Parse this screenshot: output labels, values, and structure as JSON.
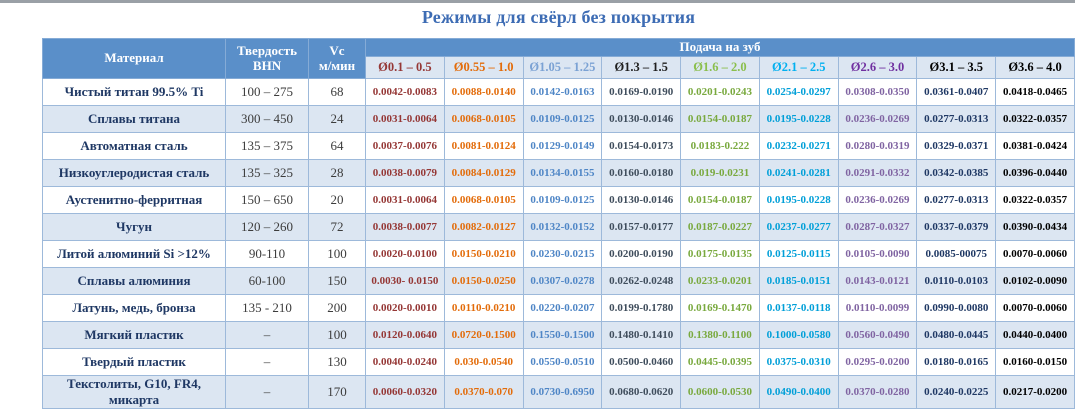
{
  "page": {
    "title": "Режимы для свёрл без покрытия"
  },
  "colors": {
    "header_bg": "#5a8fc9",
    "header_text": "#ffffff",
    "stripe_bg": "#dce6f2",
    "border": "#9db9da",
    "title_text": "#3d6cb4",
    "material_text": "#1f3864"
  },
  "table": {
    "headers": {
      "material": "Материал",
      "hardness_line1": "Твердость",
      "hardness_line2": "BHN",
      "vc_line1": "Vc",
      "vc_line2": "м/мин",
      "feed_group": "Подача на зуб",
      "diameter_columns": [
        "Ø0.1 – 0.5",
        "Ø0.55 – 1.0",
        "Ø1.05 – 1.25",
        "Ø1.3 – 1.5",
        "Ø1.6 – 2.0",
        "Ø2.1 – 2.5",
        "Ø2.6 – 3.0",
        "Ø3.1 – 3.5",
        "Ø3.6 – 4.0"
      ],
      "diameter_header_colors": [
        "#953735",
        "#e36c0a",
        "#7ba2d4",
        "#1f1f1f",
        "#8bbf4d",
        "#00b0f0",
        "#7030a0",
        "#000000",
        "#000000"
      ]
    },
    "feed_cell_colors": [
      "#953735",
      "#e36c0a",
      "#4f86c6",
      "#3f4d5c",
      "#79a93e",
      "#009fd8",
      "#8064a2",
      "#1f3864",
      "#000000"
    ],
    "rows": [
      {
        "material": "Чистый титан 99.5% Ti",
        "bhn": "100 – 275",
        "vc": "68",
        "feeds": [
          "0.0042-0.0083",
          "0.0088-0.0140",
          "0.0142-0.0163",
          "0.0169-0.0190",
          "0.0201-0.0243",
          "0.0254-0.0297",
          "0.0308-0.0350",
          "0.0361-0.0407",
          "0.0418-0.0465"
        ]
      },
      {
        "material": "Сплавы титана",
        "bhn": "300 – 450",
        "vc": "24",
        "feeds": [
          "0.0031-0.0064",
          "0.0068-0.0105",
          "0.0109-0.0125",
          "0.0130-0.0146",
          "0.0154-0.0187",
          "0.0195-0.0228",
          "0.0236-0.0269",
          "0.0277-0.0313",
          "0.0322-0.0357"
        ]
      },
      {
        "material": "Автоматная сталь",
        "bhn": "135 – 375",
        "vc": "64",
        "feeds": [
          "0.0037-0.0076",
          "0.0081-0.0124",
          "0.0129-0.0149",
          "0.0154-0.0173",
          "0.0183-0.222",
          "0.0232-0.0271",
          "0.0280-0.0319",
          "0.0329-0.0371",
          "0.0381-0.0424"
        ]
      },
      {
        "material": "Низкоуглеродистая сталь",
        "bhn": "135 – 325",
        "vc": "28",
        "feeds": [
          "0.0038-0.0079",
          "0.0084-0.0129",
          "0.0134-0.0155",
          "0.0160-0.0180",
          "0.019-0.0231",
          "0.0241-0.0281",
          "0.0291-0.0332",
          "0.0342-0.0385",
          "0.0396-0.0440"
        ]
      },
      {
        "material": "Аустенитно-ферритная",
        "bhn": "150 – 650",
        "vc": "20",
        "feeds": [
          "0.0031-0.0064",
          "0.0068-0.0105",
          "0.0109-0.0125",
          "0.0130-0.0146",
          "0.0154-0.0187",
          "0.0195-0.0228",
          "0.0236-0.0269",
          "0.0277-0.0313",
          "0.0322-0.0357"
        ]
      },
      {
        "material": "Чугун",
        "bhn": "120 – 260",
        "vc": "72",
        "feeds": [
          "0.0038-0.0077",
          "0.0082-0.0127",
          "0.0132-0.0152",
          "0.0157-0.0177",
          "0.0187-0.0227",
          "0.0237-0.0277",
          "0.0287-0.0327",
          "0.0337-0.0379",
          "0.0390-0.0434"
        ]
      },
      {
        "material": "Литой алюминий Si >12%",
        "bhn": "90-110",
        "vc": "100",
        "feeds": [
          "0.0020-0.0100",
          "0.0150-0.0210",
          "0.0230-0.0215",
          "0.0200-0.0190",
          "0.0175-0.0135",
          "0.0125-0.0115",
          "0.0105-0.0090",
          "0.0085-00075",
          "0.0070-0.0060"
        ]
      },
      {
        "material": "Сплавы алюминия",
        "bhn": "60-100",
        "vc": "150",
        "feeds": [
          "0.0030- 0.0150",
          "0.0150-0.0250",
          "0.0307-0.0278",
          "0.0262-0.0248",
          "0.0233-0.0201",
          "0.0185-0.0151",
          "0.0143-0.0121",
          "0.0110-0.0103",
          "0.0102-0.0090"
        ]
      },
      {
        "material": "Латунь, медь, бронза",
        "bhn": "135 - 210",
        "vc": "200",
        "feeds": [
          "0.0020-0.0010",
          "0.0110-0.0210",
          "0.0220-0.0207",
          "0.0199-0.1780",
          "0.0169-0.1470",
          "0.0137-0.0118",
          "0.0110-0.0099",
          "0.0990-0.0080",
          "0.0070-0.0060"
        ]
      },
      {
        "material": "Мягкий пластик",
        "bhn": "–",
        "vc": "100",
        "feeds": [
          "0.0120-0.0640",
          "0.0720-0.1500",
          "0.1550-0.1500",
          "0.1480-0.1410",
          "0.1380-0.1100",
          "0.1000-0.0580",
          "0.0560-0.0490",
          "0.0480-0.0445",
          "0.0440-0.0400"
        ]
      },
      {
        "material": "Твердый пластик",
        "bhn": "–",
        "vc": "130",
        "feeds": [
          "0.0040-0.0240",
          "0.030-0.0540",
          "0.0550-0.0510",
          "0.0500-0.0460",
          "0.0445-0.0395",
          "0.0375-0.0310",
          "0.0295-0.0200",
          "0.0180-0.0165",
          "0.0160-0.0150"
        ]
      },
      {
        "material": "Текстолиты, G10, FR4, микарта",
        "bhn": "–",
        "vc": "170",
        "feeds": [
          "0.0060-0.0320",
          "0.0370-0.070",
          "0.0730-0.6950",
          "0.0680-0.0620",
          "0.0600-0.0530",
          "0.0490-0.0400",
          "0.0370-0.0280",
          "0.0240-0.0225",
          "0.0217-0.0200"
        ]
      }
    ]
  }
}
